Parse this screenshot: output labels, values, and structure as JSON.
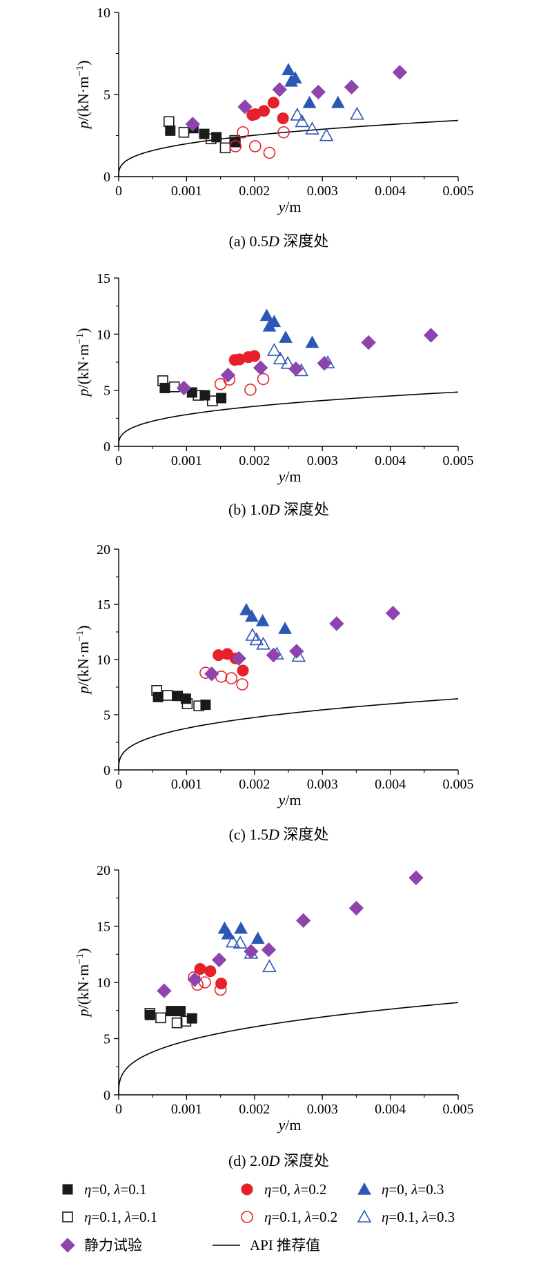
{
  "colors": {
    "black": "#1a1a1a",
    "red": "#e62129",
    "blue": "#2a58b4",
    "purple": "#8e44ad",
    "line": "#000000"
  },
  "legend": [
    {
      "marker": "square-filled",
      "color": "black",
      "eta": "η",
      "eta_val": "=0,",
      "lam": "λ",
      "lam_val": "=0.1"
    },
    {
      "marker": "circle-filled",
      "color": "red",
      "eta": "η",
      "eta_val": "=0,",
      "lam": "λ",
      "lam_val": "=0.2"
    },
    {
      "marker": "triangle-filled",
      "color": "blue",
      "eta": "η",
      "eta_val": "=0,",
      "lam": "λ",
      "lam_val": "=0.3"
    },
    {
      "marker": "square-open",
      "color": "black",
      "eta": "η",
      "eta_val": "=0.1,",
      "lam": "λ",
      "lam_val": "=0.1"
    },
    {
      "marker": "circle-open",
      "color": "red",
      "eta": "η",
      "eta_val": "=0.1,",
      "lam": "λ",
      "lam_val": "=0.2"
    },
    {
      "marker": "triangle-open",
      "color": "blue",
      "eta": "η",
      "eta_val": "=0.1,",
      "lam": "λ",
      "lam_val": "=0.3"
    },
    {
      "marker": "diamond-filled",
      "color": "purple",
      "text": "静力试验"
    },
    {
      "marker": "line",
      "color": "line",
      "text": "API 推荐值"
    }
  ],
  "chart_data": [
    {
      "type": "scatter",
      "caption_pre": "(a) 0.5",
      "caption_D": "D",
      "caption_post": " 深度处",
      "ylabel_p": "p",
      "ylabel_rest": "/(kN·m",
      "ylabel_exp": "−1",
      "ylabel_close": ")",
      "xlabel_y": "y",
      "xlabel_rest": "/m",
      "xlim": [
        0,
        0.005
      ],
      "ylim": [
        0,
        10
      ],
      "xticks": [
        "0",
        "0.001",
        "0.002",
        "0.003",
        "0.004",
        "0.005"
      ],
      "yticks": [
        "0",
        "5",
        "10"
      ],
      "ytick_values": [
        0,
        5,
        10
      ],
      "api_curve_pu": 2.0,
      "series": [
        {
          "key": "s1",
          "marker": "square-filled",
          "color": "black",
          "points": [
            [
              0.00076,
              2.8
            ],
            [
              0.0011,
              2.95
            ],
            [
              0.00126,
              2.6
            ],
            [
              0.00144,
              2.4
            ],
            [
              0.00172,
              2.1
            ]
          ]
        },
        {
          "key": "s2",
          "marker": "circle-filled",
          "color": "red",
          "points": [
            [
              0.00197,
              3.75
            ],
            [
              0.00201,
              3.8
            ],
            [
              0.00214,
              4.0
            ],
            [
              0.00228,
              4.5
            ],
            [
              0.00242,
              3.55
            ]
          ]
        },
        {
          "key": "s3",
          "marker": "triangle-filled",
          "color": "blue",
          "points": [
            [
              0.0025,
              6.5
            ],
            [
              0.00254,
              5.8
            ],
            [
              0.0026,
              6.0
            ],
            [
              0.00281,
              4.5
            ],
            [
              0.00323,
              4.5
            ]
          ]
        },
        {
          "key": "s4",
          "marker": "square-open",
          "color": "black",
          "points": [
            [
              0.00074,
              3.35
            ],
            [
              0.00096,
              2.7
            ],
            [
              0.00136,
              2.3
            ],
            [
              0.00157,
              1.75
            ],
            [
              0.00171,
              2.2
            ]
          ]
        },
        {
          "key": "s5",
          "marker": "circle-open",
          "color": "red",
          "points": [
            [
              0.00172,
              1.85
            ],
            [
              0.00183,
              2.7
            ],
            [
              0.00201,
              1.85
            ],
            [
              0.00222,
              1.45
            ],
            [
              0.00243,
              2.7
            ]
          ]
        },
        {
          "key": "s6",
          "marker": "triangle-open",
          "color": "blue",
          "points": [
            [
              0.00263,
              3.75
            ],
            [
              0.0027,
              3.35
            ],
            [
              0.00285,
              2.9
            ],
            [
              0.00306,
              2.5
            ],
            [
              0.00351,
              3.8
            ]
          ]
        },
        {
          "key": "s7",
          "marker": "diamond-filled",
          "color": "purple",
          "points": [
            [
              0.00109,
              3.2
            ],
            [
              0.00186,
              4.25
            ],
            [
              0.00237,
              5.3
            ],
            [
              0.00294,
              5.15
            ],
            [
              0.00343,
              5.45
            ],
            [
              0.00414,
              6.35
            ]
          ]
        }
      ]
    },
    {
      "type": "scatter",
      "caption_pre": "(b) 1.0",
      "caption_D": "D",
      "caption_post": " 深度处",
      "ylabel_p": "p",
      "ylabel_rest": "/(kN·m",
      "ylabel_exp": "−1",
      "ylabel_close": ")",
      "xlabel_y": "y",
      "xlabel_rest": "/m",
      "xlim": [
        0,
        0.005
      ],
      "ylim": [
        0,
        15
      ],
      "xticks": [
        "0",
        "0.001",
        "0.002",
        "0.003",
        "0.004",
        "0.005"
      ],
      "yticks": [
        "0",
        "5",
        "10",
        "15"
      ],
      "ytick_values": [
        0,
        5,
        10,
        15
      ],
      "api_curve_pu": 2.83,
      "series": [
        {
          "key": "s1",
          "marker": "square-filled",
          "color": "black",
          "points": [
            [
              0.00068,
              5.2
            ],
            [
              0.00108,
              4.8
            ],
            [
              0.00127,
              4.55
            ],
            [
              0.00151,
              4.3
            ]
          ]
        },
        {
          "key": "s2",
          "marker": "circle-filled",
          "color": "red",
          "points": [
            [
              0.00171,
              7.7
            ],
            [
              0.00178,
              7.75
            ],
            [
              0.00191,
              7.95
            ],
            [
              0.002,
              8.05
            ]
          ]
        },
        {
          "key": "s3",
          "marker": "triangle-filled",
          "color": "blue",
          "points": [
            [
              0.00218,
              11.65
            ],
            [
              0.00222,
              10.7
            ],
            [
              0.00229,
              11.1
            ],
            [
              0.00246,
              9.7
            ],
            [
              0.00285,
              9.25
            ]
          ]
        },
        {
          "key": "s4",
          "marker": "square-open",
          "color": "black",
          "points": [
            [
              0.00065,
              5.85
            ],
            [
              0.00082,
              5.3
            ],
            [
              0.00117,
              4.55
            ],
            [
              0.00138,
              4.05
            ]
          ]
        },
        {
          "key": "s5",
          "marker": "circle-open",
          "color": "red",
          "points": [
            [
              0.0015,
              5.55
            ],
            [
              0.00163,
              5.95
            ],
            [
              0.00194,
              5.05
            ],
            [
              0.00213,
              6.0
            ]
          ]
        },
        {
          "key": "s6",
          "marker": "triangle-open",
          "color": "blue",
          "points": [
            [
              0.00229,
              8.55
            ],
            [
              0.00238,
              7.8
            ],
            [
              0.00249,
              7.4
            ],
            [
              0.00269,
              6.75
            ],
            [
              0.00308,
              7.45
            ]
          ]
        },
        {
          "key": "s7",
          "marker": "diamond-filled",
          "color": "purple",
          "points": [
            [
              0.00096,
              5.2
            ],
            [
              0.00161,
              6.35
            ],
            [
              0.00209,
              7.0
            ],
            [
              0.00261,
              6.9
            ],
            [
              0.00303,
              7.4
            ],
            [
              0.00368,
              9.25
            ],
            [
              0.0046,
              9.9
            ]
          ]
        }
      ]
    },
    {
      "type": "scatter",
      "caption_pre": "(c) 1.5",
      "caption_D": "D",
      "caption_post": " 深度处",
      "ylabel_p": "p",
      "ylabel_rest": "/(kN·m",
      "ylabel_exp": "−1",
      "ylabel_close": ")",
      "xlabel_y": "y",
      "xlabel_rest": "/m",
      "xlim": [
        0,
        0.005
      ],
      "ylim": [
        0,
        20
      ],
      "xticks": [
        "0",
        "0.001",
        "0.002",
        "0.003",
        "0.004",
        "0.005"
      ],
      "yticks": [
        "0",
        "5",
        "10",
        "15",
        "20"
      ],
      "ytick_values": [
        0,
        5,
        10,
        15,
        20
      ],
      "api_curve_pu": 3.77,
      "series": [
        {
          "key": "s1",
          "marker": "square-filled",
          "color": "black",
          "points": [
            [
              0.00058,
              6.6
            ],
            [
              0.00087,
              6.7
            ],
            [
              0.00099,
              6.45
            ],
            [
              0.00128,
              5.9
            ]
          ]
        },
        {
          "key": "s2",
          "marker": "circle-filled",
          "color": "red",
          "points": [
            [
              0.00147,
              10.4
            ],
            [
              0.0016,
              10.5
            ],
            [
              0.00172,
              10.1
            ],
            [
              0.00183,
              9.0
            ]
          ]
        },
        {
          "key": "s3",
          "marker": "triangle-filled",
          "color": "blue",
          "points": [
            [
              0.00188,
              14.5
            ],
            [
              0.00196,
              13.9
            ],
            [
              0.00212,
              13.5
            ],
            [
              0.00245,
              12.8
            ]
          ]
        },
        {
          "key": "s4",
          "marker": "square-open",
          "color": "black",
          "points": [
            [
              0.00056,
              7.2
            ],
            [
              0.00072,
              6.75
            ],
            [
              0.00101,
              6.0
            ],
            [
              0.00118,
              5.8
            ]
          ]
        },
        {
          "key": "s5",
          "marker": "circle-open",
          "color": "red",
          "points": [
            [
              0.00128,
              8.8
            ],
            [
              0.00151,
              8.45
            ],
            [
              0.00166,
              8.3
            ],
            [
              0.00182,
              7.75
            ]
          ]
        },
        {
          "key": "s6",
          "marker": "triangle-open",
          "color": "blue",
          "points": [
            [
              0.00197,
              12.2
            ],
            [
              0.00203,
              11.8
            ],
            [
              0.00213,
              11.4
            ],
            [
              0.00233,
              10.5
            ],
            [
              0.00265,
              10.3
            ]
          ]
        },
        {
          "key": "s7",
          "marker": "diamond-filled",
          "color": "purple",
          "points": [
            [
              0.00137,
              8.7
            ],
            [
              0.00177,
              10.1
            ],
            [
              0.00228,
              10.4
            ],
            [
              0.00262,
              10.75
            ],
            [
              0.00321,
              13.25
            ],
            [
              0.00404,
              14.2
            ]
          ]
        }
      ]
    },
    {
      "type": "scatter",
      "caption_pre": "(d) 2.0",
      "caption_D": "D",
      "caption_post": " 深度处",
      "ylabel_p": "p",
      "ylabel_rest": "/(kN·m",
      "ylabel_exp": "−1",
      "ylabel_close": ")",
      "xlabel_y": "y",
      "xlabel_rest": "/m",
      "xlim": [
        0,
        0.005
      ],
      "ylim": [
        0,
        20
      ],
      "xticks": [
        "0",
        "0.001",
        "0.002",
        "0.003",
        "0.004",
        "0.005"
      ],
      "yticks": [
        "0",
        "5",
        "10",
        "15",
        "20"
      ],
      "ytick_values": [
        0,
        5,
        10,
        15,
        20
      ],
      "api_curve_pu": 4.8,
      "series": [
        {
          "key": "s1",
          "marker": "square-filled",
          "color": "black",
          "points": [
            [
              0.00046,
              7.1
            ],
            [
              0.00077,
              7.45
            ],
            [
              0.00091,
              7.45
            ],
            [
              0.00108,
              6.8
            ]
          ]
        },
        {
          "key": "s2",
          "marker": "circle-filled",
          "color": "red",
          "points": [
            [
              0.0012,
              11.2
            ],
            [
              0.00135,
              11.0
            ],
            [
              0.00151,
              9.9
            ]
          ]
        },
        {
          "key": "s3",
          "marker": "triangle-filled",
          "color": "blue",
          "points": [
            [
              0.00156,
              14.8
            ],
            [
              0.00161,
              14.3
            ],
            [
              0.0018,
              14.8
            ],
            [
              0.00205,
              13.9
            ]
          ]
        },
        {
          "key": "s4",
          "marker": "square-open",
          "color": "black",
          "points": [
            [
              0.00046,
              7.25
            ],
            [
              0.00062,
              6.85
            ],
            [
              0.00086,
              6.4
            ],
            [
              0.00099,
              6.55
            ]
          ]
        },
        {
          "key": "s5",
          "marker": "circle-open",
          "color": "red",
          "points": [
            [
              0.00111,
              10.45
            ],
            [
              0.00116,
              9.8
            ],
            [
              0.00127,
              10.0
            ],
            [
              0.0015,
              9.35
            ]
          ]
        },
        {
          "key": "s6",
          "marker": "triangle-open",
          "color": "blue",
          "points": [
            [
              0.00168,
              13.6
            ],
            [
              0.00179,
              13.5
            ],
            [
              0.00195,
              12.6
            ],
            [
              0.00222,
              11.4
            ]
          ]
        },
        {
          "key": "s7",
          "marker": "diamond-filled",
          "color": "purple",
          "points": [
            [
              0.00067,
              9.25
            ],
            [
              0.00112,
              10.25
            ],
            [
              0.00148,
              12.0
            ],
            [
              0.00195,
              12.75
            ],
            [
              0.00221,
              12.9
            ],
            [
              0.00272,
              15.5
            ],
            [
              0.0035,
              16.6
            ],
            [
              0.00438,
              19.3
            ]
          ]
        }
      ]
    }
  ]
}
